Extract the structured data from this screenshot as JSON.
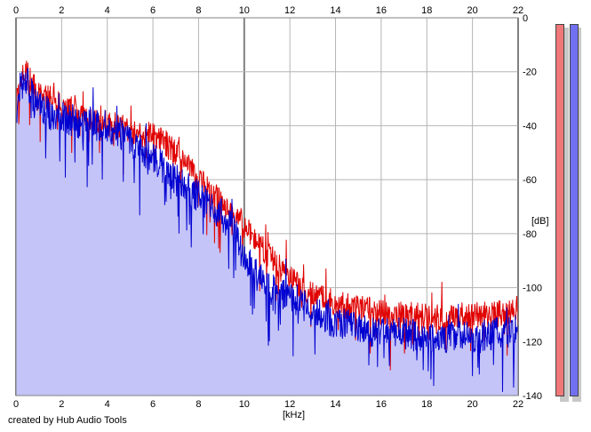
{
  "chart_data": {
    "type": "line",
    "xlabel": "[kHz]",
    "ylabel": "[dB]",
    "xlim": [
      0,
      22
    ],
    "ylim": [
      -140,
      0
    ],
    "x_ticks": [
      "0",
      "2",
      "4",
      "6",
      "8",
      "10",
      "12",
      "14",
      "16",
      "18",
      "20",
      "22"
    ],
    "y_ticks": [
      "0",
      "-20",
      "-40",
      "-60",
      "-80",
      "-100",
      "-120",
      "-140"
    ],
    "grid": true,
    "series": [
      {
        "color": "#e00000",
        "x": [
          0,
          0.25,
          0.5,
          0.75,
          1,
          1.5,
          2,
          2.5,
          3,
          3.5,
          4,
          4.5,
          5,
          5.5,
          6,
          6.5,
          7,
          7.5,
          8,
          8.5,
          9,
          9.5,
          10,
          10.5,
          11,
          11.5,
          12,
          12.5,
          13,
          13.5,
          14,
          14.5,
          15,
          15.5,
          16,
          16.5,
          17,
          17.5,
          18,
          18.5,
          19,
          19.5,
          20,
          20.5,
          21,
          21.5,
          22
        ],
        "y": [
          -30,
          -22,
          -20,
          -25,
          -28,
          -30,
          -32,
          -34,
          -37,
          -38,
          -40,
          -40,
          -42,
          -44,
          -43,
          -46,
          -50,
          -55,
          -60,
          -64,
          -68,
          -72,
          -77,
          -83,
          -87,
          -92,
          -96,
          -100,
          -102,
          -104,
          -106,
          -107,
          -108,
          -108,
          -109,
          -110,
          -110,
          -110,
          -111,
          -111,
          -111,
          -111,
          -110,
          -110,
          -110,
          -109,
          -108
        ]
      },
      {
        "color": "#0000d0",
        "x": [
          0,
          0.25,
          0.5,
          0.75,
          1,
          1.5,
          2,
          2.5,
          3,
          3.5,
          4,
          4.5,
          5,
          5.5,
          6,
          6.5,
          7,
          7.5,
          8,
          8.5,
          9,
          9.5,
          10,
          10.5,
          11,
          11.5,
          12,
          12.5,
          13,
          13.5,
          14,
          14.5,
          15,
          15.5,
          16,
          16.5,
          17,
          17.5,
          18,
          18.5,
          19,
          19.5,
          20,
          20.5,
          21,
          21.5,
          22
        ],
        "y": [
          -34,
          -26,
          -24,
          -30,
          -33,
          -36,
          -37,
          -38,
          -40,
          -40,
          -41,
          -42,
          -46,
          -49,
          -52,
          -56,
          -60,
          -63,
          -66,
          -69,
          -73,
          -78,
          -88,
          -94,
          -98,
          -102,
          -104,
          -106,
          -109,
          -111,
          -113,
          -114,
          -115,
          -116,
          -116,
          -117,
          -117,
          -118,
          -118,
          -118,
          -118,
          -118,
          -118,
          -118,
          -117,
          -117,
          -116
        ]
      }
    ]
  },
  "footer": {
    "credit": "created by Hub Audio Tools"
  },
  "colors": {
    "fill": "#c4c4f8",
    "grid": "#b4b4b4",
    "grid_major": "#808080",
    "meter_left": "#f07878",
    "meter_right": "#7070f0"
  }
}
